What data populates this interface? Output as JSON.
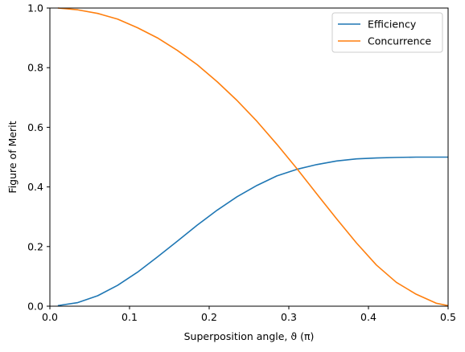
{
  "chart_data": {
    "type": "line",
    "title": "",
    "xlabel": "Superposition angle, ϑ (π)",
    "ylabel": "Figure of Merit",
    "xlim": [
      0,
      0.5
    ],
    "ylim": [
      0,
      1.0
    ],
    "x_ticks": [
      "0.0",
      "0.1",
      "0.2",
      "0.3",
      "0.4",
      "0.5"
    ],
    "y_ticks": [
      "0.0",
      "0.2",
      "0.4",
      "0.6",
      "0.8",
      "1.0"
    ],
    "grid": false,
    "legend_position": "top-right",
    "x": [
      0.01,
      0.035,
      0.06,
      0.085,
      0.11,
      0.135,
      0.16,
      0.185,
      0.21,
      0.235,
      0.26,
      0.285,
      0.31,
      0.335,
      0.36,
      0.385,
      0.41,
      0.435,
      0.46,
      0.485,
      0.5
    ],
    "series": [
      {
        "name": "Efficiency",
        "color": "#1f77b4",
        "values": [
          0.002,
          0.012,
          0.035,
          0.07,
          0.114,
          0.165,
          0.218,
          0.272,
          0.322,
          0.367,
          0.405,
          0.437,
          0.459,
          0.475,
          0.487,
          0.494,
          0.497,
          0.499,
          0.5,
          0.5,
          0.5
        ]
      },
      {
        "name": "Concurrence",
        "color": "#ff7f0e",
        "values": [
          1.0,
          0.994,
          0.982,
          0.963,
          0.934,
          0.9,
          0.858,
          0.81,
          0.753,
          0.69,
          0.62,
          0.543,
          0.462,
          0.377,
          0.293,
          0.212,
          0.138,
          0.08,
          0.04,
          0.01,
          0.002
        ]
      }
    ]
  }
}
